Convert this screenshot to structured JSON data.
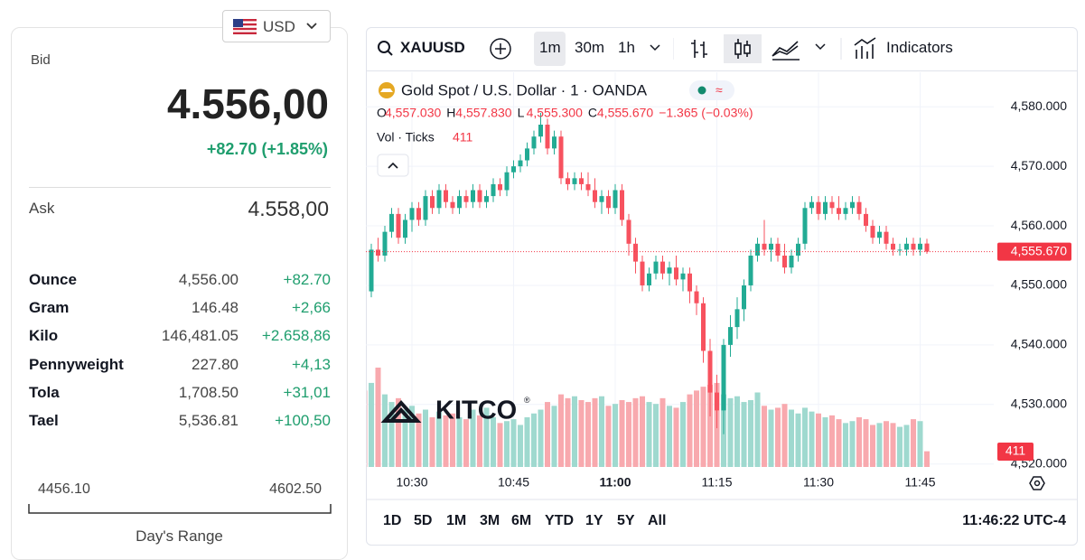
{
  "currency": "USD",
  "bid": {
    "label": "Bid",
    "value": "4.556,00",
    "change": "+82.70 (+1.85%)"
  },
  "ask": {
    "label": "Ask",
    "value": "4.558,00"
  },
  "units": {
    "rows": [
      [
        "Ounce",
        "4,556.00",
        "+82.70"
      ],
      [
        "Gram",
        "146.48",
        "+2,66"
      ],
      [
        "Kilo",
        "146,481.05",
        "+2.658,86"
      ],
      [
        "Pennyweight",
        "227.80",
        "+4,13"
      ],
      [
        "Tola",
        "1,708.50",
        "+31,01"
      ],
      [
        "Tael",
        "5,536.81",
        "+100,50"
      ]
    ]
  },
  "day_range": {
    "low": "4456.10",
    "high": "4602.50",
    "label": "Day's Range"
  },
  "toolbar": {
    "symbol": "XAUUSD",
    "intervals": [
      "1m",
      "30m",
      "1h"
    ],
    "indicators": "Indicators"
  },
  "legend": {
    "title": "Gold Spot / U.S. Dollar · 1 · OANDA",
    "ohlc": [
      {
        "key": "O",
        "value": "4,557.030"
      },
      {
        "key": "H",
        "value": "4,557.830"
      },
      {
        "key": "L",
        "value": "4,555.300"
      },
      {
        "key": "C",
        "value": "4,555.670"
      }
    ],
    "change": "−1.365 (−0.03%)",
    "vol_label": "Vol · Ticks",
    "vol_value": "411"
  },
  "watermark": {
    "name": "KITCO",
    "mark": "®"
  },
  "ranges": [
    "1D",
    "5D",
    "1M",
    "3M",
    "6M",
    "YTD",
    "1Y",
    "5Y",
    "All"
  ],
  "clock": "11:46:22 UTC-4",
  "chart_data": {
    "type": "candlestick",
    "x": [
      "10:23",
      "10:24",
      "10:25",
      "10:26",
      "10:27",
      "10:28",
      "10:29",
      "10:30",
      "10:31",
      "10:32",
      "10:33",
      "10:34",
      "10:35",
      "10:36",
      "10:37",
      "10:38",
      "10:39",
      "10:40",
      "10:41",
      "10:42",
      "10:43",
      "10:44",
      "10:45",
      "10:46",
      "10:47",
      "10:48",
      "10:49",
      "10:50",
      "10:51",
      "10:52",
      "10:53",
      "10:54",
      "10:55",
      "10:56",
      "10:57",
      "10:58",
      "10:59",
      "11:00",
      "11:01",
      "11:02",
      "11:03",
      "11:04",
      "11:05",
      "11:06",
      "11:07",
      "11:08",
      "11:09",
      "11:10",
      "11:11",
      "11:12",
      "11:13",
      "11:14",
      "11:15",
      "11:16",
      "11:17",
      "11:18",
      "11:19",
      "11:20",
      "11:21",
      "11:22",
      "11:23",
      "11:24",
      "11:25",
      "11:26",
      "11:27",
      "11:28",
      "11:29",
      "11:30",
      "11:31",
      "11:32",
      "11:33",
      "11:34",
      "11:35",
      "11:36",
      "11:37",
      "11:38",
      "11:39",
      "11:40",
      "11:41",
      "11:42",
      "11:43",
      "11:44",
      "11:45",
      "11:46"
    ],
    "open": [
      4555,
      4549,
      4556,
      4555,
      4559,
      4562,
      4558,
      4561,
      4563,
      4561,
      4565,
      4563,
      4566,
      4564,
      4563,
      4565,
      4564,
      4566,
      4564,
      4565,
      4567,
      4566,
      4569,
      4570,
      4571,
      4573,
      4575,
      4577,
      4573,
      4575,
      4568,
      4567,
      4568,
      4567,
      4566,
      4564,
      4565,
      4563,
      4566,
      4561,
      4557,
      4554,
      4550,
      4552,
      4554,
      4552,
      4553,
      4551,
      4552,
      4549,
      4547,
      4539,
      4532,
      4529,
      4540,
      4543,
      4546,
      4550,
      4555,
      4557,
      4556,
      4557,
      4555,
      4553,
      4555,
      4557,
      4563,
      4564,
      4562,
      4564,
      4563,
      4562,
      4563,
      4564,
      4562,
      4560,
      4558,
      4559,
      4557,
      4556,
      4556,
      4557,
      4556,
      4557.03
    ],
    "high": [
      4556,
      4557,
      4558,
      4560,
      4563,
      4563,
      4562,
      4564,
      4564,
      4566,
      4566,
      4567,
      4567,
      4565,
      4566,
      4566,
      4567,
      4567,
      4566,
      4568,
      4568,
      4570,
      4571,
      4572,
      4574,
      4576,
      4579,
      4578,
      4576,
      4576,
      4569,
      4569,
      4569,
      4569,
      4568,
      4566,
      4566,
      4567,
      4567,
      4562,
      4558,
      4555,
      4553,
      4555,
      4555,
      4554,
      4555,
      4553,
      4553,
      4550,
      4548,
      4541,
      4535,
      4541,
      4545,
      4548,
      4551,
      4556,
      4558,
      4561,
      4558,
      4558,
      4557,
      4556,
      4558,
      4564,
      4565,
      4565,
      4565,
      4565,
      4565,
      4564,
      4565,
      4565,
      4563,
      4561,
      4560,
      4560,
      4558,
      4557,
      4558,
      4558,
      4558,
      4557.83
    ],
    "low": [
      4547,
      4548,
      4554,
      4554,
      4558,
      4557,
      4557,
      4559,
      4560,
      4560,
      4562,
      4562,
      4563,
      4562,
      4562,
      4563,
      4563,
      4563,
      4563,
      4564,
      4565,
      4565,
      4568,
      4569,
      4570,
      4572,
      4574,
      4572,
      4572,
      4567,
      4566,
      4566,
      4566,
      4565,
      4563,
      4562,
      4562,
      4562,
      4560,
      4555,
      4552,
      4549,
      4549,
      4551,
      4551,
      4550,
      4550,
      4549,
      4547,
      4545,
      4537,
      4528,
      4526,
      4525,
      4538,
      4541,
      4544,
      4549,
      4554,
      4555,
      4554,
      4554,
      4552,
      4552,
      4554,
      4556,
      4562,
      4561,
      4561,
      4562,
      4561,
      4561,
      4562,
      4561,
      4559,
      4557,
      4557,
      4556,
      4555,
      4555,
      4555,
      4555,
      4555,
      4555.3
    ],
    "close": [
      4549,
      4556,
      4555,
      4559,
      4562,
      4558,
      4561,
      4563,
      4561,
      4565,
      4563,
      4566,
      4564,
      4563,
      4565,
      4564,
      4566,
      4564,
      4565,
      4567,
      4566,
      4569,
      4570,
      4571,
      4573,
      4575,
      4577,
      4573,
      4575,
      4568,
      4567,
      4568,
      4567,
      4566,
      4564,
      4565,
      4563,
      4566,
      4561,
      4557,
      4554,
      4550,
      4552,
      4554,
      4552,
      4553,
      4551,
      4552,
      4549,
      4547,
      4539,
      4532,
      4529,
      4540,
      4543,
      4546,
      4550,
      4555,
      4557,
      4556,
      4557,
      4555,
      4553,
      4555,
      4557,
      4563,
      4564,
      4562,
      4564,
      4563,
      4562,
      4563,
      4564,
      4562,
      4560,
      4558,
      4559,
      4557,
      4556,
      4556,
      4557,
      4556,
      4557,
      4555.67
    ],
    "volume": [
      2000,
      2200,
      2600,
      1900,
      1700,
      1800,
      1500,
      1600,
      1400,
      1500,
      1300,
      1450,
      1350,
      1400,
      1300,
      1250,
      1500,
      1350,
      1550,
      1300,
      1150,
      1200,
      1250,
      1100,
      1300,
      1400,
      1500,
      1700,
      1600,
      1900,
      1800,
      1850,
      1750,
      1700,
      1800,
      1850,
      1600,
      1650,
      1750,
      1700,
      1800,
      1850,
      1700,
      1650,
      1800,
      1600,
      1550,
      1700,
      1900,
      2000,
      2100,
      2150,
      2200,
      1900,
      1800,
      1850,
      1700,
      1750,
      1950,
      1600,
      1500,
      1550,
      1650,
      1500,
      1400,
      1550,
      1450,
      1400,
      1300,
      1350,
      1250,
      1150,
      1200,
      1300,
      1250,
      1100,
      1150,
      1200,
      1150,
      1050,
      1100,
      1250,
      1200,
      411
    ],
    "up_color": "#22ab94",
    "down_color": "#f7525f",
    "volume_up_color": "#9fd9cf",
    "volume_down_color": "#f8a9ae",
    "ylim": [
      4519.5,
      4585.8
    ],
    "yticks": [
      {
        "value": 4520,
        "label": "4,520.000"
      },
      {
        "value": 4530,
        "label": "4,530.000"
      },
      {
        "value": 4540,
        "label": "4,540.000"
      },
      {
        "value": 4550,
        "label": "4,550.000"
      },
      {
        "value": 4560,
        "label": "4,560.000"
      },
      {
        "value": 4570,
        "label": "4,570.000"
      },
      {
        "value": 4580,
        "label": "4,580.000"
      }
    ],
    "xticks": [
      "10:30",
      "10:45",
      "11:00",
      "11:15",
      "11:30",
      "11:45"
    ],
    "last_price": {
      "value": 4555.67,
      "label": "4,555.670"
    },
    "grid": true
  }
}
